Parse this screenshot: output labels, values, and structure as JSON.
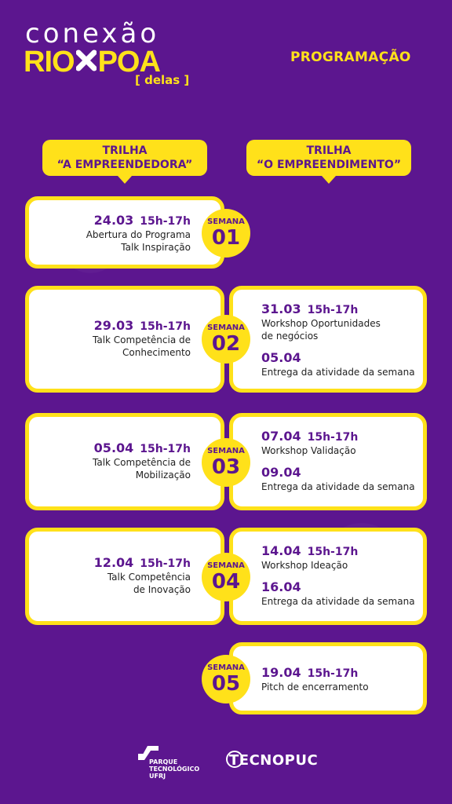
{
  "header": {
    "logo_top": "conexão",
    "logo_rio": "RIO",
    "logo_poa": "POA",
    "logo_sub": "[ delas ]",
    "title": "PROGRAMAÇÃO"
  },
  "tracks": [
    {
      "line1": "TRILHA",
      "line2": "“A EMPREENDEDORA”"
    },
    {
      "line1": "TRILHA",
      "line2": "“O EMPREENDIMENTO”"
    }
  ],
  "weeks": [
    {
      "label": "SEMANA",
      "num": "01",
      "left": {
        "date": "24.03",
        "time": "15h-17h",
        "lines": [
          "Abertura do Programa",
          "Talk Inspiração"
        ]
      }
    },
    {
      "label": "SEMANA",
      "num": "02",
      "left": {
        "date": "29.03",
        "time": "15h-17h",
        "lines": [
          "Talk Competência de",
          "Conhecimento"
        ]
      },
      "right": {
        "date": "31.03",
        "time": "15h-17h",
        "lines": [
          "Workshop Oportunidades",
          "de negócios"
        ],
        "date2": "05.04",
        "text2": "Entrega da atividade da semana"
      }
    },
    {
      "label": "SEMANA",
      "num": "03",
      "left": {
        "date": "05.04",
        "time": "15h-17h",
        "lines": [
          "Talk Competência de",
          "Mobilização"
        ]
      },
      "right": {
        "date": "07.04",
        "time": "15h-17h",
        "lines": [
          "Workshop Validação"
        ],
        "date2": "09.04",
        "text2": "Entrega da atividade da semana"
      }
    },
    {
      "label": "SEMANA",
      "num": "04",
      "left": {
        "date": "12.04",
        "time": "15h-17h",
        "lines": [
          "Talk Competência",
          "de Inovação"
        ]
      },
      "right": {
        "date": "14.04",
        "time": "15h-17h",
        "lines": [
          "Workshop Ideação"
        ],
        "date2": "16.04",
        "text2": "Entrega da atividade da semana"
      }
    },
    {
      "label": "SEMANA",
      "num": "05",
      "right": {
        "date": "19.04",
        "time": "15h-17h",
        "lines": [
          "Pitch de encerramento"
        ]
      }
    }
  ],
  "footer": {
    "parque_1": "PARQUE",
    "parque_2": "TECNOLÓGICO",
    "parque_3": "UFRJ",
    "tecnopuc": "TECNOPUC"
  },
  "colors": {
    "purple": "#5c168f",
    "yellow": "#ffe11a"
  }
}
